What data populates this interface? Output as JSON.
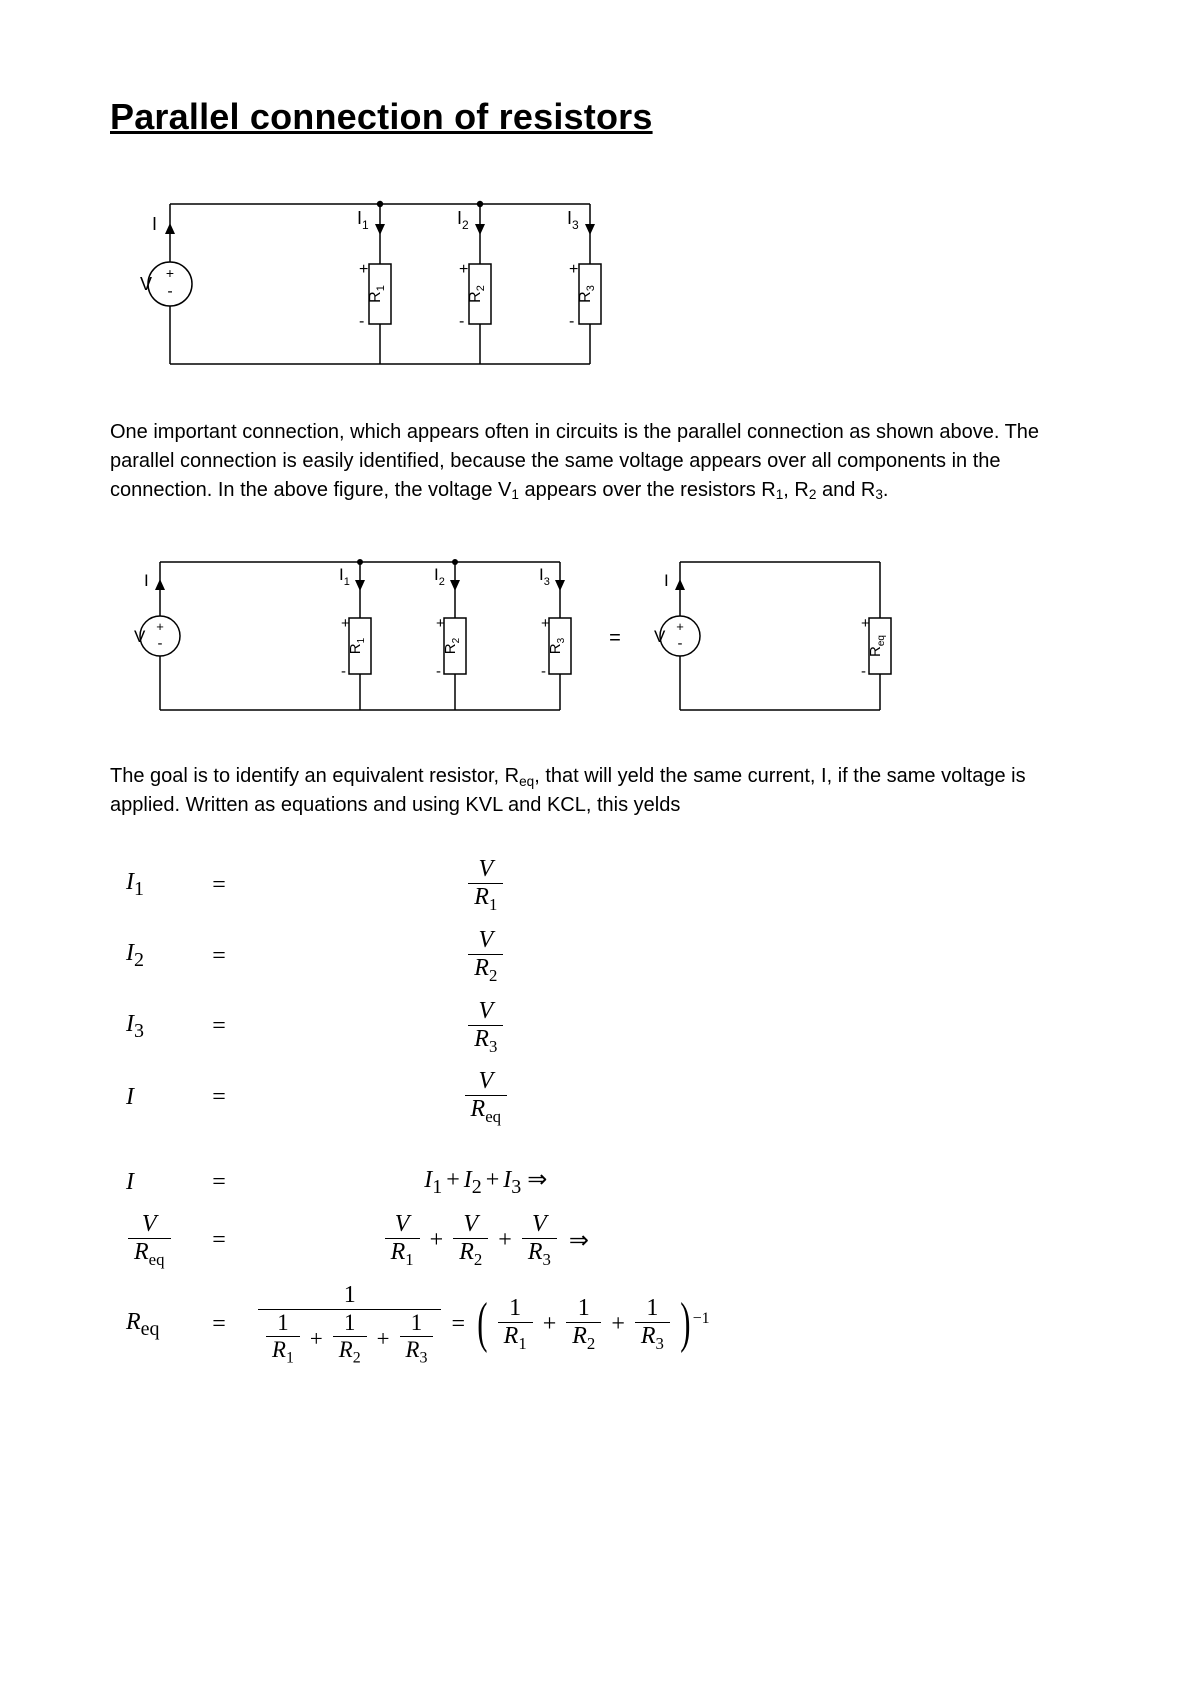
{
  "title": "Parallel connection of resistors",
  "para1_html": "One important connection, which appears often in circuits is the parallel connection as shown above. The parallel connection is easily identified, because the same voltage appears over all components in the connection. In the above figure, the voltage V<span class=\"subn\">1</span> appears over the resistors R<span class=\"subn\">1</span>, R<span class=\"subn\">2</span> and R<span class=\"subn\">3</span>.",
  "para2_html": "The goal is to identify an equivalent resistor, R<span class=\"subn\">eq</span>, that will yeld the same current, I, if the same voltage is applied. Written as equations and using KVL and KCL, this yelds",
  "diagram": {
    "type": "circuit-diagram",
    "stroke": "#000000",
    "stroke_width": 1.5,
    "bg": "#ffffff",
    "arrow_fill": "#000000",
    "node_fill": "#000000",
    "font_family": "Arial, Helvetica, sans-serif",
    "label_fontsize": 18,
    "resistor_label_fontsize": 16,
    "labels": {
      "V": "V",
      "I": "I",
      "I1": "I",
      "I1s": "1",
      "I2": "I",
      "I2s": "2",
      "I3": "I",
      "I3s": "3",
      "R1": "R",
      "R1s": "1",
      "R2": "R",
      "R2s": "2",
      "R3": "R",
      "R3s": "3",
      "Req": "R",
      "Reqs": "eq",
      "plus": "+",
      "minus": "-",
      "equals": "="
    }
  },
  "equations": {
    "font_family": "Times New Roman, Times, serif",
    "fontsize": 24
  }
}
